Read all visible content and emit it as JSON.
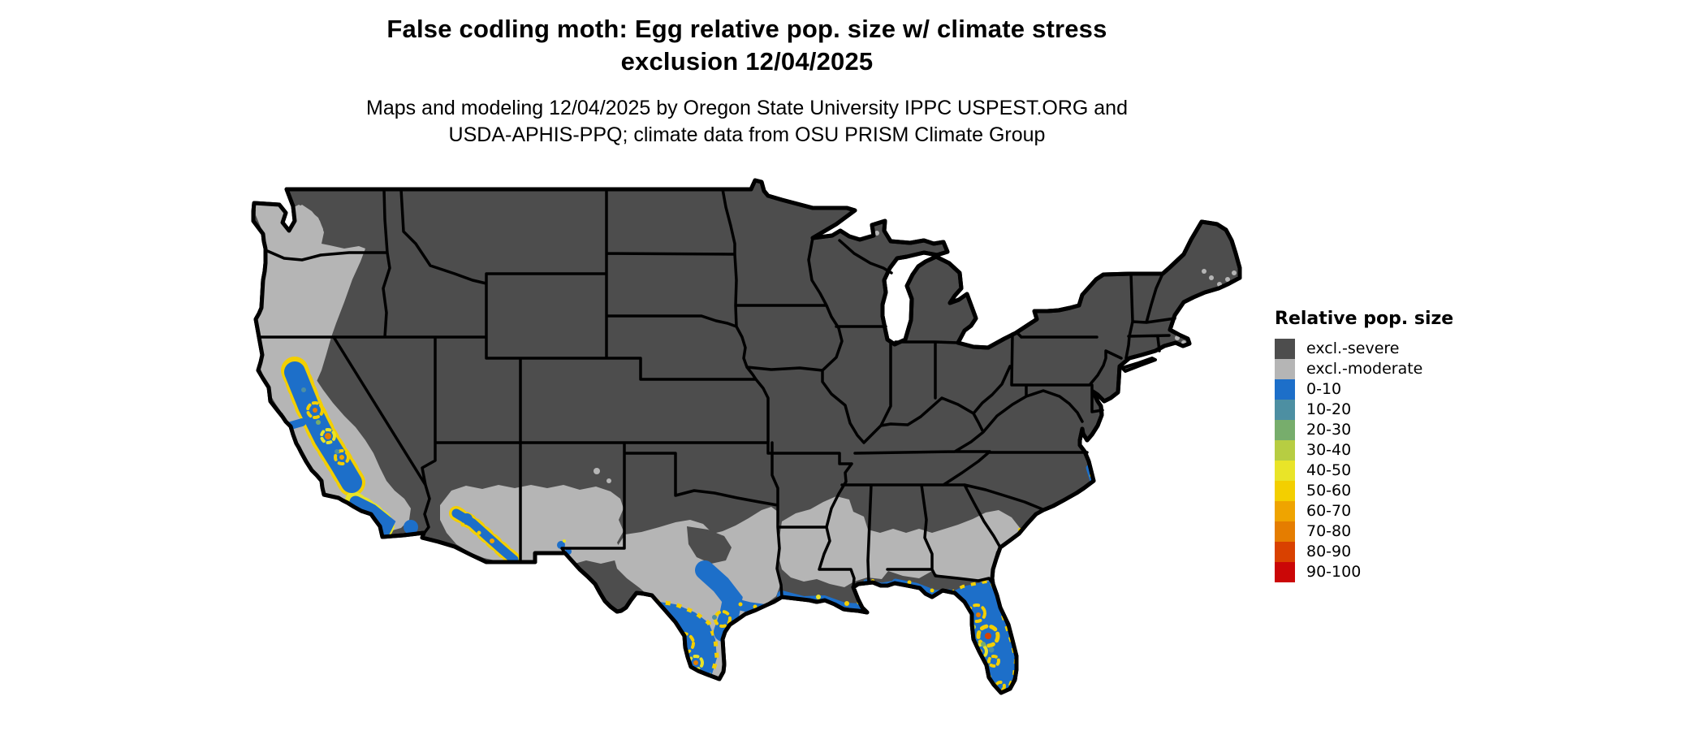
{
  "header": {
    "title_line1": "False codling moth: Egg relative pop. size w/ climate stress",
    "title_line2": "exclusion 12/04/2025",
    "subtitle_line1": "Maps and modeling 12/04/2025 by Oregon State University IPPC USPEST.ORG and",
    "subtitle_line2": "USDA-APHIS-PPQ; climate data from OSU PRISM Climate Group"
  },
  "legend": {
    "title": "Relative pop. size",
    "items": [
      {
        "label": "excl.-severe",
        "color": "#4d4d4d"
      },
      {
        "label": "excl.-moderate",
        "color": "#b5b5b5"
      },
      {
        "label": "0-10",
        "color": "#1d6fc9"
      },
      {
        "label": "10-20",
        "color": "#4d8fa2"
      },
      {
        "label": "20-30",
        "color": "#77ad6c"
      },
      {
        "label": "30-40",
        "color": "#b7cd42"
      },
      {
        "label": "40-50",
        "color": "#e9e428"
      },
      {
        "label": "50-60",
        "color": "#f3cf00"
      },
      {
        "label": "60-70",
        "color": "#efa400"
      },
      {
        "label": "70-80",
        "color": "#e57d00"
      },
      {
        "label": "80-90",
        "color": "#d94100"
      },
      {
        "label": "90-100",
        "color": "#cb0707"
      }
    ]
  },
  "map": {
    "palette": {
      "excl_severe": "#4d4d4d",
      "excl_moderate": "#b5b5b5",
      "p0_10": "#1d6fc9",
      "p10_20": "#4d8fa2",
      "p20_30": "#77ad6c",
      "p30_40": "#b7cd42",
      "p40_50": "#e9e428",
      "p50_60": "#f3cf00",
      "p60_70": "#efa400",
      "p70_80": "#e57d00",
      "p80_90": "#d94100",
      "p90_100": "#cb0707",
      "border": "#000000",
      "water": "#ffffff"
    },
    "regions_summary": {
      "excl_severe": "Most of CONUS interior, north, and east",
      "excl_moderate": "Puget lowlands WA, western OR, CA coast ranges, southern AZ/NM, southern TX, Gulf coast LA/MS/AL, southern GA and coastal SC, FL panhandle, Maine coast and Cape Cod specks",
      "pop_0_10": "CA Central Valley and SoCal coast, S AZ, S TX and Gulf coast fringe, most of FL peninsula, NC Outer Banks",
      "pop_40_60_speckles": "Fringes around blue zones in CA, AZ, S TX, LA delta, central FL",
      "pop_60_100_speckles": "Small cores inside yellow rings in CA, S TX, FL"
    }
  }
}
